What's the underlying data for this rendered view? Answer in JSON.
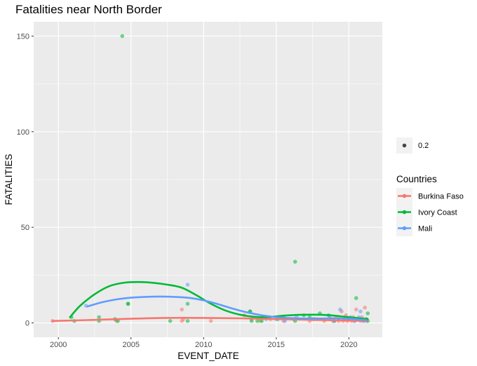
{
  "chart_data": {
    "type": "scatter",
    "title": "Fatalities near North Border",
    "xlabel": "EVENT_DATE",
    "ylabel": "FATALITIES",
    "xlim": [
      1998.3,
      2022.3
    ],
    "ylim": [
      -7.5,
      157.5
    ],
    "xticks": [
      2000,
      2005,
      2010,
      2015,
      2020
    ],
    "yticks": [
      0,
      50,
      100,
      150
    ],
    "grid": true,
    "legend_position": "right",
    "alpha_legend": {
      "label": "0.2"
    },
    "colour_legend": {
      "title": "Countries"
    },
    "series": [
      {
        "name": "Burkina Faso",
        "color": "#F8766D",
        "points": [
          [
            1999.6,
            1
          ],
          [
            2004.0,
            1
          ],
          [
            2008.5,
            7
          ],
          [
            2008.5,
            1
          ],
          [
            2008.6,
            2
          ],
          [
            2010.5,
            1
          ],
          [
            2012.8,
            4
          ],
          [
            2013.3,
            2
          ],
          [
            2013.9,
            1
          ],
          [
            2014.6,
            2
          ],
          [
            2015.5,
            1
          ],
          [
            2016.2,
            2
          ],
          [
            2017.3,
            1
          ],
          [
            2017.8,
            2
          ],
          [
            2018.3,
            1
          ],
          [
            2018.7,
            2
          ],
          [
            2018.9,
            1
          ],
          [
            2019.1,
            3
          ],
          [
            2019.3,
            1
          ],
          [
            2019.5,
            6
          ],
          [
            2019.6,
            1
          ],
          [
            2019.7,
            2
          ],
          [
            2019.8,
            4
          ],
          [
            2019.9,
            1
          ],
          [
            2020.1,
            2
          ],
          [
            2020.2,
            1
          ],
          [
            2020.3,
            3
          ],
          [
            2020.4,
            1
          ],
          [
            2020.5,
            7
          ],
          [
            2020.6,
            2
          ],
          [
            2020.8,
            1
          ],
          [
            2020.9,
            3
          ],
          [
            2021.0,
            1
          ],
          [
            2021.1,
            8
          ],
          [
            2021.2,
            2
          ],
          [
            2021.2,
            1
          ]
        ],
        "trend": [
          [
            1999.6,
            1.0
          ],
          [
            2002.5,
            1.6
          ],
          [
            2005,
            2.2
          ],
          [
            2007.5,
            2.6
          ],
          [
            2010,
            2.6
          ],
          [
            2012.5,
            2.4
          ],
          [
            2015,
            2.0
          ],
          [
            2017.5,
            1.6
          ],
          [
            2019.5,
            1.3
          ],
          [
            2021.2,
            1.1
          ]
        ]
      },
      {
        "name": "Ivory Coast",
        "color": "#00BA38",
        "points": [
          [
            2000.9,
            3
          ],
          [
            2001.1,
            1
          ],
          [
            2002.8,
            3
          ],
          [
            2002.8,
            1
          ],
          [
            2003.9,
            2
          ],
          [
            2004.1,
            1
          ],
          [
            2004.4,
            150
          ],
          [
            2004.8,
            10
          ],
          [
            2004.8,
            10
          ],
          [
            2007.7,
            1
          ],
          [
            2008.9,
            10
          ],
          [
            2008.9,
            1
          ],
          [
            2013.2,
            6
          ],
          [
            2013.2,
            6
          ],
          [
            2013.3,
            1
          ],
          [
            2013.7,
            1
          ],
          [
            2014.0,
            1
          ],
          [
            2014.5,
            3
          ],
          [
            2015.1,
            2
          ],
          [
            2015.5,
            3
          ],
          [
            2016.3,
            32
          ],
          [
            2016.3,
            1
          ],
          [
            2016.9,
            4
          ],
          [
            2017.3,
            3
          ],
          [
            2017.6,
            2
          ],
          [
            2018.0,
            5
          ],
          [
            2018.6,
            4
          ],
          [
            2019.0,
            1
          ],
          [
            2019.3,
            2
          ],
          [
            2020.0,
            2
          ],
          [
            2020.5,
            13
          ],
          [
            2020.7,
            2
          ],
          [
            2021.3,
            5
          ],
          [
            2021.3,
            1
          ]
        ],
        "trend": [
          [
            2000.8,
            3
          ],
          [
            2001.5,
            9
          ],
          [
            2002.5,
            15
          ],
          [
            2003.5,
            19.2
          ],
          [
            2004.5,
            21
          ],
          [
            2005.5,
            21.4
          ],
          [
            2006.5,
            21
          ],
          [
            2007.5,
            20
          ],
          [
            2008.5,
            18.4
          ],
          [
            2009.5,
            14.5
          ],
          [
            2010.5,
            10
          ],
          [
            2011.5,
            6.5
          ],
          [
            2012.5,
            4.3
          ],
          [
            2013.5,
            3.2
          ],
          [
            2014.5,
            3.1
          ],
          [
            2015.5,
            3.8
          ],
          [
            2016.5,
            4.2
          ],
          [
            2017.5,
            4.3
          ],
          [
            2018.5,
            4.1
          ],
          [
            2019.5,
            3.4
          ],
          [
            2020.5,
            2.6
          ],
          [
            2021.3,
            2.0
          ]
        ]
      },
      {
        "name": "Mali",
        "color": "#619CFF",
        "points": [
          [
            2001.9,
            9
          ],
          [
            2008.9,
            20
          ],
          [
            2014.3,
            2
          ],
          [
            2015.0,
            2
          ],
          [
            2015.6,
            1
          ],
          [
            2016.4,
            3
          ],
          [
            2017.5,
            2
          ],
          [
            2018.7,
            3
          ],
          [
            2019.0,
            1
          ],
          [
            2019.4,
            7
          ],
          [
            2019.7,
            2
          ],
          [
            2020.1,
            3
          ],
          [
            2020.4,
            1
          ],
          [
            2020.5,
            2
          ],
          [
            2020.7,
            3
          ],
          [
            2020.8,
            6
          ],
          [
            2021.0,
            1
          ],
          [
            2021.2,
            2
          ]
        ],
        "trend": [
          [
            2002,
            8.6
          ],
          [
            2003,
            10.8
          ],
          [
            2004,
            12.3
          ],
          [
            2005,
            13.2
          ],
          [
            2006,
            13.6
          ],
          [
            2007,
            13.8
          ],
          [
            2008,
            13.6
          ],
          [
            2009,
            13.1
          ],
          [
            2010,
            11.8
          ],
          [
            2011,
            9.8
          ],
          [
            2012,
            7.5
          ],
          [
            2013,
            5.5
          ],
          [
            2014,
            4.0
          ],
          [
            2015,
            3.0
          ],
          [
            2016,
            2.5
          ],
          [
            2017,
            2.3
          ],
          [
            2018,
            2.3
          ],
          [
            2019,
            2.4
          ],
          [
            2020,
            2.2
          ],
          [
            2021.2,
            1.4
          ]
        ]
      }
    ]
  }
}
